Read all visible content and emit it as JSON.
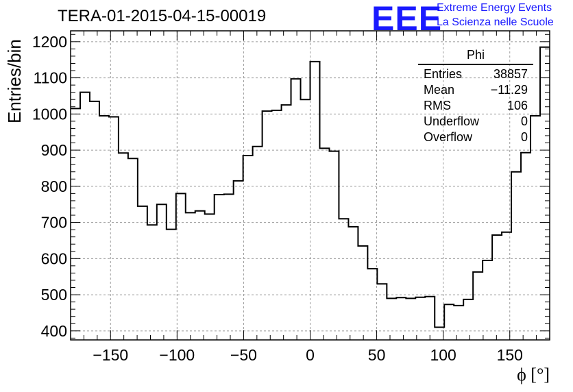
{
  "header": {
    "title": "TERA-01-2015-04-15-00019"
  },
  "logo": {
    "mark": "EEE",
    "line1": "Extreme Energy Events",
    "line2": "La Scienza nelle Scuole",
    "color": "#1a1aff"
  },
  "stats": {
    "name": "Phi",
    "rows": [
      {
        "label": "Entries",
        "value": "38857"
      },
      {
        "label": "Mean",
        "value": "−11.29"
      },
      {
        "label": "RMS",
        "value": "106"
      },
      {
        "label": "Underflow",
        "value": "0"
      },
      {
        "label": "Overflow",
        "value": "0"
      }
    ]
  },
  "chart_data": {
    "type": "histogram",
    "title": "TERA-01-2015-04-15-00019",
    "xlabel": "ϕ [°]",
    "ylabel": "Entries/bin",
    "xlim": [
      -180,
      180
    ],
    "ylim": [
      375,
      1230
    ],
    "grid": true,
    "bin_width": 7.2,
    "bin_edges_start": -180,
    "values": [
      1015,
      1060,
      1035,
      995,
      992,
      892,
      877,
      745,
      693,
      750,
      681,
      780,
      727,
      732,
      723,
      777,
      778,
      815,
      885,
      910,
      1008,
      1010,
      1025,
      1097,
      1040,
      1145,
      905,
      897,
      710,
      688,
      635,
      572,
      530,
      490,
      492,
      490,
      493,
      495,
      410,
      473,
      470,
      487,
      563,
      595,
      665,
      673,
      840,
      893,
      995,
      1185
    ],
    "x_ticks": [
      -150,
      -100,
      -50,
      0,
      50,
      100,
      150
    ],
    "x_tick_labels": [
      "−150",
      "−100",
      "−50",
      "0",
      "50",
      "100",
      "150"
    ],
    "y_ticks": [
      400,
      500,
      600,
      700,
      800,
      900,
      1000,
      1100,
      1200
    ],
    "y_tick_labels": [
      "400",
      "500",
      "600",
      "700",
      "800",
      "900",
      "1000",
      "1100",
      "1200"
    ]
  }
}
